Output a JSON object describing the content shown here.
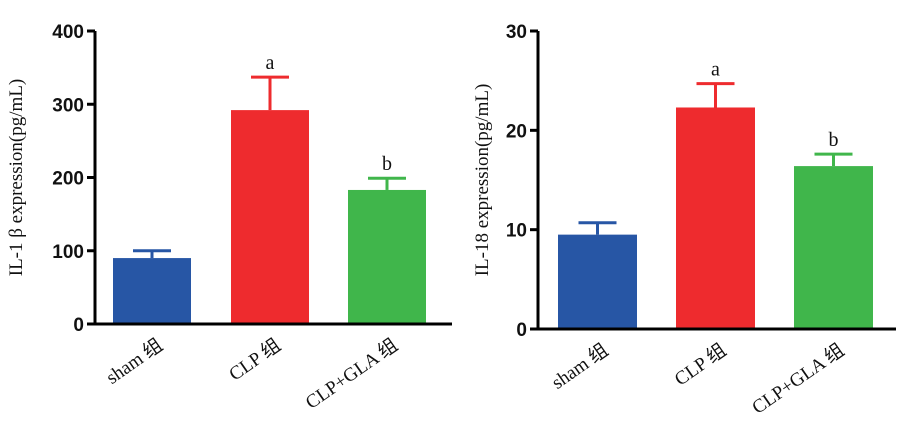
{
  "chart_data": [
    {
      "type": "bar",
      "title": "",
      "xlabel": "",
      "ylabel": "IL-1 β expression(pg/mL)",
      "ylim": [
        0,
        400
      ],
      "yticks": [
        "0",
        "100",
        "200",
        "300",
        "400"
      ],
      "categories": [
        "sham 组",
        "CLP 组",
        "CLP+GLA 组"
      ],
      "values": [
        90,
        292,
        183
      ],
      "error_upper": [
        100,
        337,
        199
      ],
      "annotations": [
        "",
        "a",
        "b"
      ],
      "colors": [
        "#2756a5",
        "#ee2b2e",
        "#40b64b"
      ]
    },
    {
      "type": "bar",
      "title": "",
      "xlabel": "",
      "ylabel": "IL-18 expression(pg/mL)",
      "ylim": [
        0,
        30
      ],
      "yticks": [
        "0",
        "10",
        "20",
        "30"
      ],
      "categories": [
        "sham 组",
        "CLP 组",
        "CLP+GLA 组"
      ],
      "values": [
        9.5,
        22.3,
        16.4
      ],
      "error_upper": [
        10.7,
        24.7,
        17.6
      ],
      "annotations": [
        "",
        "a",
        "b"
      ],
      "colors": [
        "#2756a5",
        "#ee2b2e",
        "#40b64b"
      ]
    }
  ]
}
